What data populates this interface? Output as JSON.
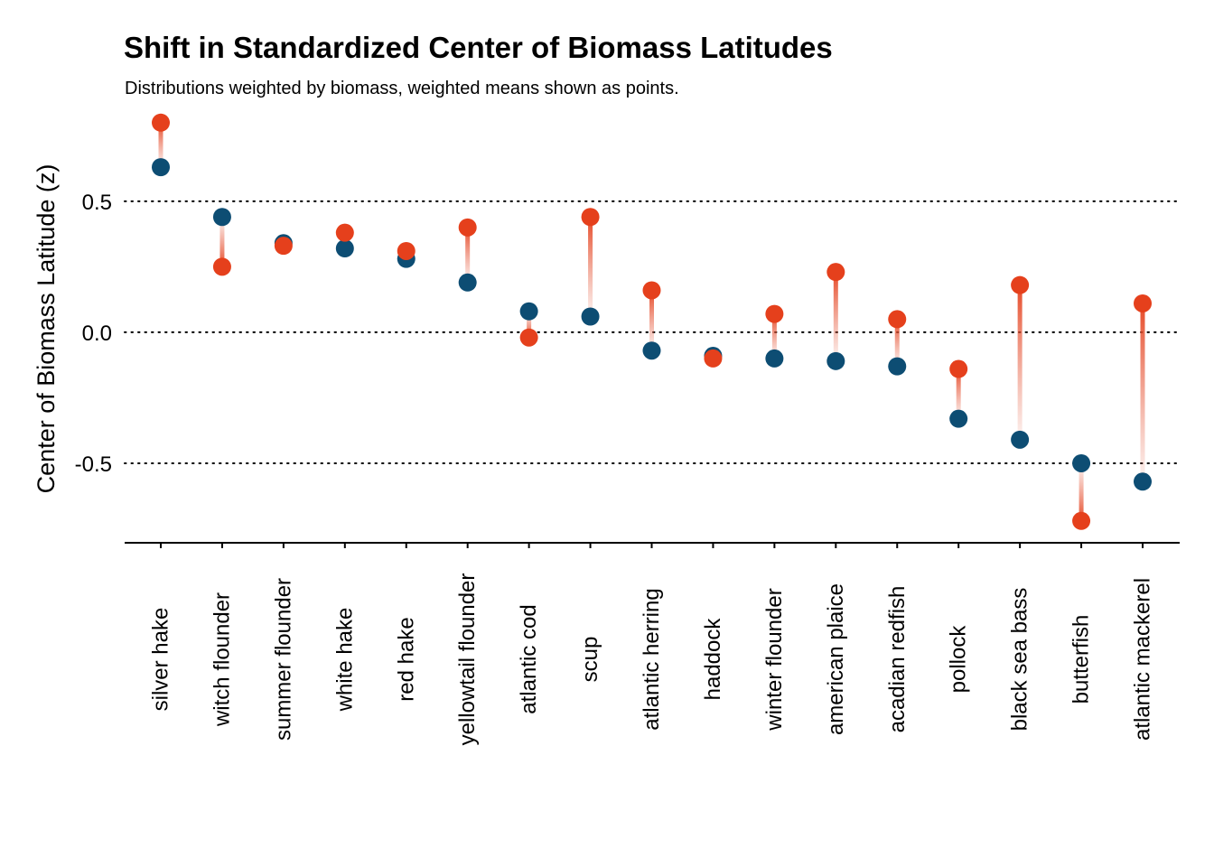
{
  "chart_data": {
    "type": "dumbbell",
    "title": "Shift in Standardized Center of Biomass Latitudes",
    "subtitle": "Distributions weighted by biomass, weighted means shown as points.",
    "xlabel": "",
    "ylabel": "Center of Biomass Latitude (z)",
    "ylim": [
      -0.8,
      0.82
    ],
    "yticks": [
      0.5,
      0.0,
      -0.5
    ],
    "ytick_labels": [
      "0.5",
      "0.0",
      "-0.5"
    ],
    "grid": "horizontal dotted at y ticks",
    "legend": "none",
    "colors": {
      "start": "#0d4d73",
      "end": "#e5401c",
      "segment": "#e8735a"
    },
    "categories": [
      "silver hake",
      "witch flounder",
      "summer flounder",
      "white hake",
      "red hake",
      "yellowtail flounder",
      "atlantic cod",
      "scup",
      "atlantic herring",
      "haddock",
      "winter flounder",
      "american plaice",
      "acadian redfish",
      "pollock",
      "black sea bass",
      "butterfish",
      "atlantic mackerel"
    ],
    "series": [
      {
        "values": [
          0.63,
          0.44,
          0.34,
          0.32,
          0.28,
          0.19,
          0.08,
          0.06,
          -0.07,
          -0.09,
          -0.1,
          -0.11,
          -0.13,
          -0.33,
          -0.41,
          -0.5,
          -0.57
        ]
      },
      {
        "values": [
          0.8,
          0.25,
          0.33,
          0.38,
          0.31,
          0.4,
          -0.02,
          0.44,
          0.16,
          -0.1,
          0.07,
          0.23,
          0.05,
          -0.14,
          0.18,
          -0.72,
          0.11
        ]
      }
    ]
  }
}
